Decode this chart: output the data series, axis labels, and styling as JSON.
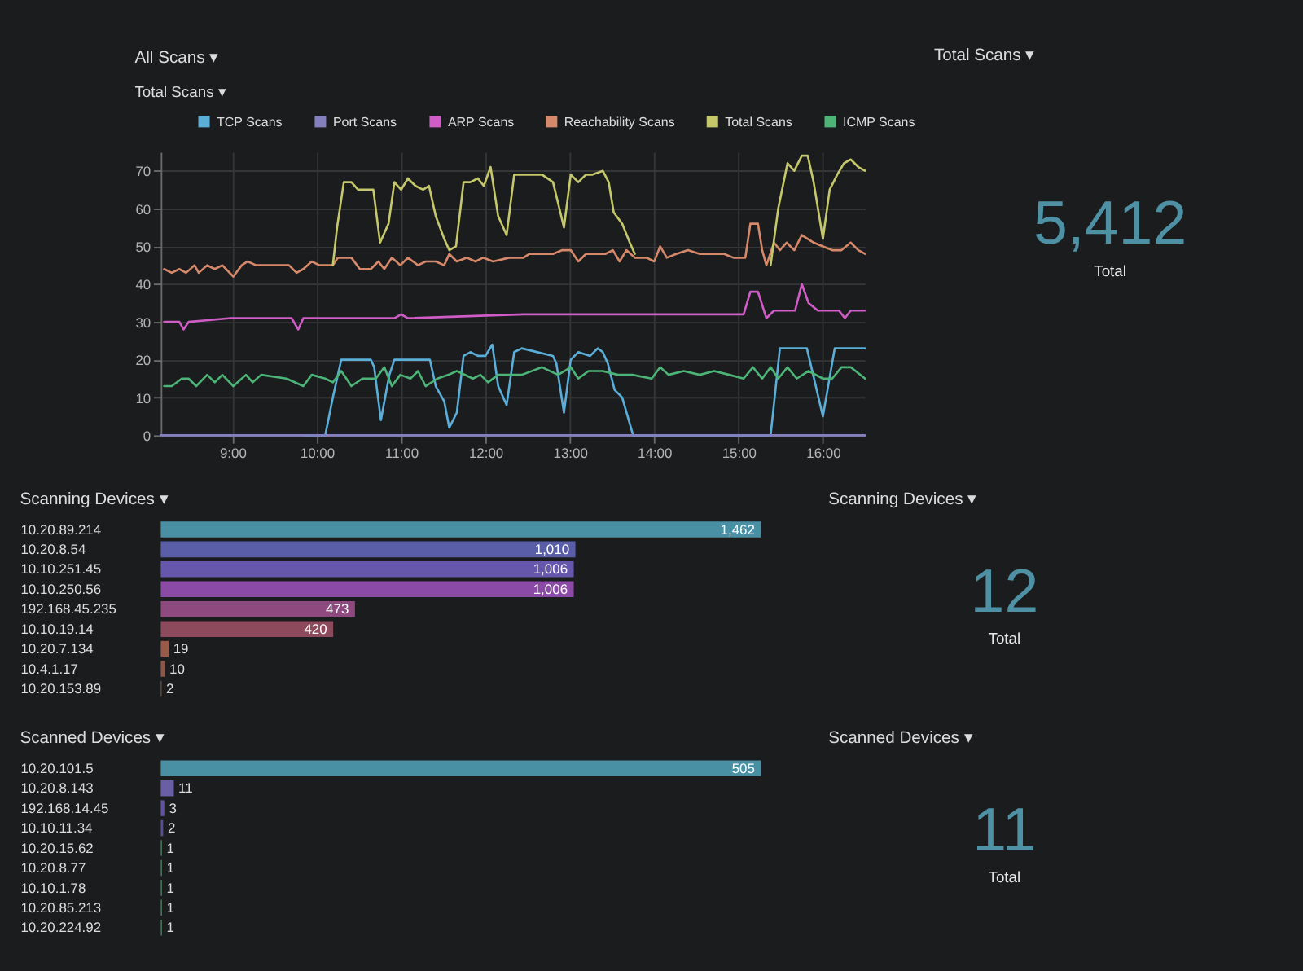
{
  "chart_data": [
    {
      "type": "line",
      "title": "All Scans ▾",
      "subtitle": "Total Scans ▾",
      "xlim": [
        8.15,
        16.5
      ],
      "xticks": [
        {
          "value": 9,
          "label": "9:00"
        },
        {
          "value": 10,
          "label": "10:00"
        },
        {
          "value": 11,
          "label": "11:00"
        },
        {
          "value": 12,
          "label": "12:00"
        },
        {
          "value": 13,
          "label": "13:00"
        },
        {
          "value": 14,
          "label": "14:00"
        },
        {
          "value": 15,
          "label": "15:00"
        },
        {
          "value": 16,
          "label": "16:00"
        }
      ],
      "ylim": [
        0,
        75
      ],
      "yticks": [
        0,
        10,
        20,
        30,
        40,
        50,
        60,
        70
      ],
      "grid": true,
      "legend": "top",
      "series": [
        {
          "name": "TCP Scans",
          "color": "#5aaed8",
          "x": [
            9.85,
            10.1,
            10.19,
            10.29,
            10.64,
            10.68,
            10.76,
            10.86,
            10.92,
            11.34,
            11.41,
            11.51,
            11.57,
            11.66,
            11.74,
            11.82,
            11.91,
            12.0,
            12.08,
            12.15,
            12.25,
            12.34,
            12.43,
            12.8,
            12.84,
            12.93,
            13.01,
            13.1,
            13.24,
            13.33,
            13.39,
            13.45,
            13.53,
            13.62,
            13.75,
            15.38,
            15.49,
            15.81,
            16.0,
            16.14,
            16.5
          ],
          "values": [
            0,
            0,
            10,
            20,
            20,
            18,
            4,
            16,
            20,
            20,
            13,
            9,
            2,
            6,
            21,
            22,
            21,
            21,
            24,
            13,
            8,
            22,
            23,
            21,
            19,
            6,
            20,
            22,
            21,
            23,
            22,
            19,
            12,
            10,
            0,
            0,
            23,
            23,
            5,
            23,
            23
          ]
        },
        {
          "name": "Port Scans",
          "color": "#8480c0",
          "x": [
            8.15,
            16.5
          ],
          "values": [
            0,
            0
          ]
        },
        {
          "name": "ARP Scans",
          "color": "#d05cc6",
          "x": [
            8.19,
            8.37,
            8.42,
            8.48,
            8.98,
            9.7,
            9.78,
            9.84,
            10.92,
            11.0,
            11.08,
            12.45,
            15.06,
            15.14,
            15.23,
            15.33,
            15.42,
            15.67,
            15.75,
            15.83,
            15.94,
            16.19,
            16.26,
            16.33,
            16.5
          ],
          "values": [
            30,
            30,
            28,
            30,
            31,
            31,
            28,
            31,
            31,
            32,
            31,
            32,
            32,
            38,
            38,
            31,
            33,
            33,
            40,
            35,
            33,
            33,
            31,
            33,
            33
          ]
        },
        {
          "name": "Reachability Scans",
          "color": "#d6886a",
          "x": [
            8.19,
            8.28,
            8.37,
            8.45,
            8.55,
            8.6,
            8.7,
            8.79,
            8.88,
            9.01,
            9.11,
            9.18,
            9.28,
            9.37,
            9.54,
            9.67,
            9.76,
            9.84,
            9.94,
            10.03,
            10.19,
            10.25,
            10.41,
            10.51,
            10.64,
            10.73,
            10.8,
            10.89,
            10.99,
            11.08,
            11.2,
            11.29,
            11.41,
            11.51,
            11.57,
            11.66,
            11.78,
            11.88,
            11.97,
            12.09,
            12.28,
            12.45,
            12.52,
            12.67,
            12.8,
            12.91,
            13.01,
            13.1,
            13.19,
            13.3,
            13.42,
            13.51,
            13.59,
            13.67,
            13.77,
            13.91,
            14.0,
            14.07,
            14.15,
            14.26,
            14.4,
            14.54,
            14.69,
            14.83,
            14.94,
            15.08,
            15.14,
            15.23,
            15.28,
            15.33,
            15.42,
            15.49,
            15.57,
            15.66,
            15.75,
            15.89,
            16.0,
            16.11,
            16.22,
            16.33,
            16.42,
            16.5
          ],
          "values": [
            44,
            43,
            44,
            43,
            45,
            43,
            45,
            44,
            45,
            42,
            45,
            46,
            45,
            45,
            45,
            45,
            43,
            44,
            46,
            45,
            45,
            47,
            47,
            44,
            44,
            46,
            44,
            47,
            45,
            47,
            45,
            46,
            46,
            45,
            48,
            46,
            47,
            46,
            47,
            46,
            47,
            47,
            48,
            48,
            48,
            49,
            49,
            46,
            48,
            48,
            48,
            49,
            46,
            49,
            47,
            47,
            46,
            50,
            47,
            48,
            49,
            48,
            48,
            48,
            47,
            47,
            56,
            56,
            49,
            45,
            51,
            49,
            51,
            49,
            53,
            51,
            50,
            49,
            49,
            51,
            49,
            48
          ]
        },
        {
          "name": "Total Scans",
          "color": "#c4c76a",
          "x": [
            10.19,
            10.24,
            10.32,
            10.41,
            10.49,
            10.67,
            10.75,
            10.85,
            10.92,
            11.0,
            11.08,
            11.17,
            11.26,
            11.33,
            11.41,
            11.51,
            11.57,
            11.65,
            11.74,
            11.82,
            11.91,
            11.98,
            12.06,
            12.15,
            12.25,
            12.34,
            12.43,
            12.55,
            12.67,
            12.8,
            12.93,
            13.01,
            13.1,
            13.19,
            13.27,
            13.39,
            13.46,
            13.52,
            13.62,
            13.71,
            13.77,
            14.5,
            15.38,
            15.47,
            15.58,
            15.66,
            15.75,
            15.82,
            15.89,
            16.0,
            16.08,
            16.17,
            16.25,
            16.33,
            16.42,
            16.5
          ],
          "values": [
            45,
            55,
            67,
            67,
            65,
            65,
            51,
            56,
            67,
            65,
            68,
            66,
            65,
            66,
            58,
            52,
            49,
            50,
            67,
            67,
            68,
            66,
            71,
            58,
            53,
            69,
            69,
            69,
            69,
            67,
            55,
            69,
            67,
            69,
            69,
            70,
            67,
            59,
            56,
            51,
            48,
            null,
            45,
            60,
            72,
            70,
            74,
            74,
            67,
            52,
            65,
            69,
            72,
            73,
            71,
            70
          ]
        },
        {
          "name": "ICMP Scans",
          "color": "#4cb477",
          "x": [
            8.19,
            8.28,
            8.4,
            8.48,
            8.57,
            8.7,
            8.79,
            8.88,
            9.01,
            9.16,
            9.24,
            9.34,
            9.64,
            9.84,
            9.94,
            10.1,
            10.19,
            10.29,
            10.41,
            10.54,
            10.7,
            10.8,
            10.89,
            10.99,
            11.11,
            11.2,
            11.29,
            11.43,
            11.56,
            11.66,
            11.85,
            11.94,
            12.03,
            12.15,
            12.28,
            12.43,
            12.67,
            12.86,
            13.01,
            13.1,
            13.22,
            13.39,
            13.57,
            13.74,
            13.97,
            14.07,
            14.17,
            14.35,
            14.54,
            14.71,
            14.89,
            15.06,
            15.17,
            15.28,
            15.38,
            15.47,
            15.58,
            15.69,
            15.83,
            16.0,
            16.11,
            16.22,
            16.33,
            16.5
          ],
          "values": [
            13,
            13,
            15,
            15,
            13,
            16,
            14,
            16,
            13,
            16,
            14,
            16,
            15,
            13,
            16,
            15,
            14,
            17,
            13,
            15,
            15,
            18,
            13,
            16,
            15,
            17,
            13,
            15,
            16,
            17,
            15,
            16,
            14,
            16,
            16,
            16,
            18,
            16,
            18,
            15,
            17,
            17,
            16,
            16,
            15,
            18,
            16,
            17,
            16,
            17,
            16,
            15,
            18,
            15,
            18,
            15,
            18,
            15,
            17,
            15,
            15,
            18,
            18,
            15
          ]
        }
      ]
    },
    {
      "type": "other",
      "title": "Total Scans ▾",
      "annotations": [
        "5,412",
        "Total"
      ]
    },
    {
      "type": "bar",
      "orientation": "horizontal",
      "title": "Scanning Devices ▾",
      "categories": [
        "10.20.89.214",
        "10.20.8.54",
        "10.10.251.45",
        "10.10.250.56",
        "192.168.45.235",
        "10.10.19.14",
        "10.20.7.134",
        "10.4.1.17",
        "10.20.153.89"
      ],
      "values": [
        1462,
        1010,
        1006,
        1006,
        473,
        420,
        19,
        10,
        2
      ],
      "colors": [
        "#4a90a4",
        "#5a5ea8",
        "#6656ac",
        "#8a4aa6",
        "#8e4a7e",
        "#8c4a5c",
        "#9a5a4a",
        "#8e5646",
        "#7e5a50"
      ],
      "value_labels": [
        "1,462",
        "1,010",
        "1,006",
        "1,006",
        "473",
        "420",
        "19",
        "10",
        "2"
      ]
    },
    {
      "type": "other",
      "title": "Scanning Devices ▾",
      "annotations": [
        "12",
        "Total"
      ]
    },
    {
      "type": "bar",
      "orientation": "horizontal",
      "title": "Scanned Devices ▾",
      "categories": [
        "10.20.101.5",
        "10.20.8.143",
        "192.168.14.45",
        "10.10.11.34",
        "10.20.15.62",
        "10.20.8.77",
        "10.10.1.78",
        "10.20.85.213",
        "10.20.224.92"
      ],
      "values": [
        505,
        11,
        3,
        2,
        1,
        1,
        1,
        1,
        1
      ],
      "colors": [
        "#4a90a4",
        "#6a5fa6",
        "#62549c",
        "#58508c",
        "#4f7d62",
        "#4f7d62",
        "#4f7d62",
        "#4f7d62",
        "#4f7d62"
      ],
      "value_labels": [
        "505",
        "11",
        "3",
        "2",
        "1",
        "1",
        "1",
        "1",
        "1"
      ]
    },
    {
      "type": "other",
      "title": "Scanned Devices ▾",
      "annotations": [
        "11",
        "Total"
      ]
    }
  ]
}
